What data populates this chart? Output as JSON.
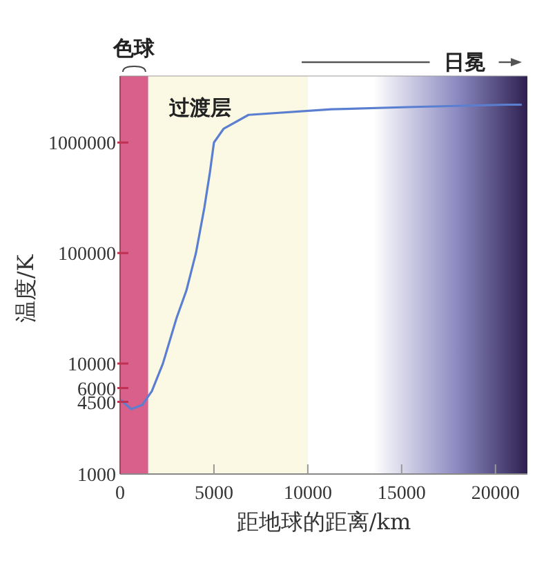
{
  "chart_data": {
    "type": "line",
    "xlabel": "距地球的距离/km",
    "ylabel": "温度/K",
    "log": "y",
    "marker": "none",
    "line_style": "solid",
    "xlim": [
      0,
      21700
    ],
    "ylim": [
      1000,
      4000000
    ],
    "xticks": [
      0,
      5000,
      10000,
      15000,
      20000
    ],
    "yticks": [
      1000,
      4500,
      6000,
      10000,
      100000,
      1000000
    ],
    "bands": [
      {
        "axis": "x",
        "from": 0,
        "to": 1500,
        "label": "色球",
        "color": "#d9608a"
      },
      {
        "axis": "x",
        "from": 1500,
        "to": 10000,
        "label": "过渡层",
        "color": "#fbf8e4"
      },
      {
        "axis": "x",
        "from": 13500,
        "to": 21700,
        "label": "日冕",
        "color": "#2e2050"
      }
    ],
    "series": [
      {
        "color": "#5b7fd0",
        "x": [
          0,
          590,
          1180,
          1690,
          2280,
          3010,
          3530,
          4040,
          4490,
          4780,
          5000,
          5510,
          6840,
          11250,
          15660,
          20590,
          21400
        ],
        "values": [
          4730,
          3870,
          4220,
          5620,
          10000,
          25900,
          45700,
          100000,
          258000,
          531000,
          1000000,
          1330000,
          1780000,
          2000000,
          2100000,
          2200000,
          2200000
        ]
      }
    ]
  }
}
